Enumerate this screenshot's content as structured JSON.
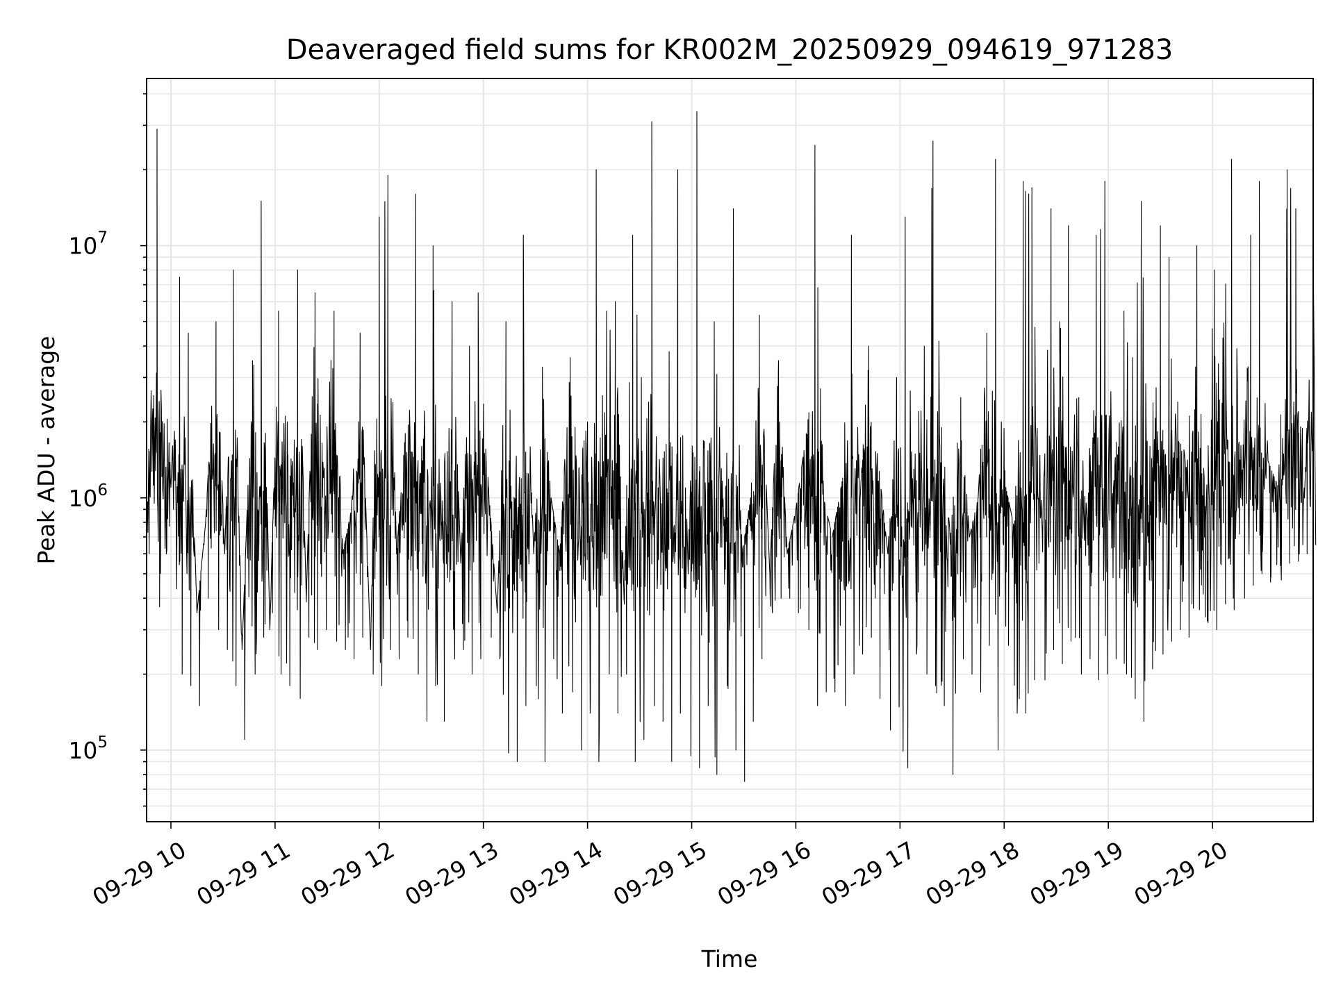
{
  "chart_data": {
    "type": "line",
    "title": "Deaveraged field sums for KR002M_20250929_094619_971283",
    "xlabel": "Time",
    "ylabel": "Peak ADU - average",
    "yscale": "log",
    "ylim": [
      52000,
      46000000
    ],
    "xlim": [
      "2025-09-29 09:46",
      "2025-09-29 20:58"
    ],
    "grid": true,
    "line_color": "#000000",
    "grid_color": "#e6e6e6",
    "x_ticks": [
      "09-29 10",
      "09-29 11",
      "09-29 12",
      "09-29 13",
      "09-29 14",
      "09-29 15",
      "09-29 16",
      "09-29 17",
      "09-29 18",
      "09-29 19",
      "09-29 20"
    ],
    "y_ticks": [
      {
        "base": "10",
        "exp": "5",
        "value": 100000
      },
      {
        "base": "10",
        "exp": "6",
        "value": 1000000
      },
      {
        "base": "10",
        "exp": "7",
        "value": 10000000
      }
    ],
    "series": [
      {
        "x": [
          "09:46",
          "09:52",
          "10:00",
          "10:05",
          "10:10",
          "10:15",
          "10:20",
          "10:26",
          "10:31",
          "10:36",
          "10:41",
          "10:47",
          "10:52",
          "10:57",
          "11:02",
          "11:07",
          "11:13",
          "11:18",
          "11:23",
          "11:28",
          "11:34",
          "11:39",
          "11:44",
          "11:49",
          "11:55",
          "12:00",
          "12:05",
          "12:10",
          "12:15",
          "12:21",
          "12:26",
          "12:31",
          "12:36",
          "12:42",
          "12:47",
          "12:52",
          "12:57",
          "13:03",
          "13:08",
          "13:13",
          "13:18",
          "13:23",
          "13:29",
          "13:34",
          "13:39",
          "13:44",
          "13:50",
          "13:55",
          "14:00",
          "14:05",
          "14:11",
          "14:16",
          "14:21",
          "14:26",
          "14:31",
          "14:37",
          "14:42",
          "14:47",
          "14:52",
          "14:58",
          "15:03",
          "15:08",
          "15:13",
          "15:19",
          "15:24",
          "15:29",
          "15:34",
          "15:39",
          "15:45",
          "15:50",
          "15:55",
          "16:00",
          "16:06",
          "16:11",
          "16:16",
          "16:21",
          "16:27",
          "16:32",
          "16:37",
          "16:42",
          "16:47",
          "16:53",
          "16:58",
          "17:03",
          "17:08",
          "17:14",
          "17:19",
          "17:24",
          "17:29",
          "17:35",
          "17:40",
          "17:45",
          "17:50",
          "17:55",
          "18:01",
          "18:06",
          "18:11",
          "18:16",
          "18:22",
          "18:27",
          "18:32",
          "18:37",
          "18:43",
          "18:48",
          "18:53",
          "18:58",
          "19:03",
          "19:09",
          "19:14",
          "19:19",
          "19:24",
          "19:30",
          "19:35",
          "19:40",
          "19:45",
          "19:51",
          "19:56",
          "20:01",
          "20:06",
          "20:11",
          "20:17",
          "20:22",
          "20:27",
          "20:32",
          "20:38",
          "20:43",
          "20:48",
          "20:53",
          "20:58"
        ],
        "values": [
          700000,
          29000000,
          1100000,
          7500000,
          4500000,
          350000,
          800000,
          5000000,
          600000,
          8000000,
          250000,
          3500000,
          15000000,
          300000,
          5500000,
          2000000,
          8000000,
          400000,
          6500000,
          1200000,
          5500000,
          600000,
          900000,
          4500000,
          250000,
          13000000,
          19000000,
          600000,
          1800000,
          16000000,
          2200000,
          10000000,
          800000,
          6000000,
          550000,
          4000000,
          6500000,
          1100000,
          350000,
          5000000,
          900000,
          11000000,
          600000,
          3300000,
          1000000,
          600000,
          3600000,
          1300000,
          2000000,
          20000000,
          5500000,
          6000000,
          400000,
          11000000,
          3000000,
          31000000,
          950000,
          3800000,
          20000000,
          500000,
          34000000,
          1000000,
          5000000,
          750000,
          14000000,
          600000,
          1000000,
          5300000,
          500000,
          3500000,
          600000,
          900000,
          1800000,
          25000000,
          1000000,
          700000,
          1200000,
          11000000,
          1000000,
          4000000,
          1500000,
          600000,
          3000000,
          13000000,
          1300000,
          4000000,
          26000000,
          1900000,
          700000,
          2500000,
          700000,
          1000000,
          4500000,
          22000000,
          1100000,
          750000,
          18000000,
          17000000,
          700000,
          14000000,
          5000000,
          12000000,
          2500000,
          800000,
          11000000,
          18000000,
          1100000,
          5500000,
          3600000,
          15000000,
          1600000,
          12000000,
          9000000,
          2400000,
          1300000,
          10000000,
          800000,
          8000000,
          4300000,
          22000000,
          1200000,
          11000000,
          18000000,
          1400000,
          1100000,
          20000000,
          14000000,
          1000000,
          10000000
        ],
        "mins": [
          600000,
          370000,
          900000,
          200000,
          180000,
          150000,
          400000,
          300000,
          250000,
          180000,
          110000,
          200000,
          280000,
          350000,
          200000,
          180000,
          160000,
          280000,
          250000,
          300000,
          270000,
          250000,
          230000,
          280000,
          200000,
          180000,
          250000,
          230000,
          280000,
          200000,
          130000,
          180000,
          130000,
          230000,
          250000,
          200000,
          230000,
          280000,
          230000,
          100000,
          90000,
          150000,
          180000,
          90000,
          230000,
          140000,
          170000,
          100000,
          140000,
          90000,
          200000,
          140000,
          200000,
          90000,
          110000,
          150000,
          130000,
          90000,
          140000,
          95000,
          85000,
          150000,
          80000,
          180000,
          100000,
          75000,
          130000,
          230000,
          350000,
          400000,
          400000,
          350000,
          300000,
          150000,
          170000,
          170000,
          150000,
          200000,
          240000,
          280000,
          160000,
          120000,
          150000,
          85000,
          240000,
          200000,
          180000,
          150000,
          80000,
          230000,
          200000,
          170000,
          260000,
          100000,
          260000,
          140000,
          140000,
          190000,
          190000,
          250000,
          220000,
          270000,
          200000,
          230000,
          190000,
          200000,
          230000,
          200000,
          160000,
          130000,
          210000,
          240000,
          270000,
          300000,
          280000,
          360000,
          320000,
          300000,
          380000,
          360000,
          400000,
          450000,
          500000,
          520000,
          520000,
          550000,
          560000,
          600000,
          650000
        ]
      }
    ]
  }
}
